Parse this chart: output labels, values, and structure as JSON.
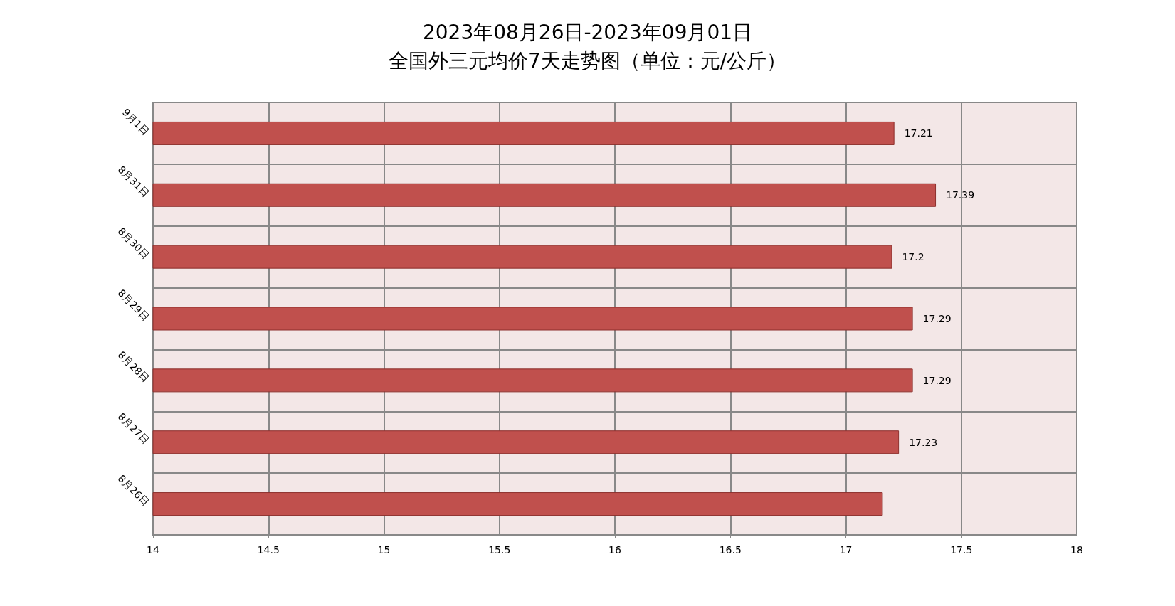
{
  "chart_data": {
    "type": "bar",
    "orientation": "horizontal",
    "title": "2023年08月26日-2023年09月01日",
    "subtitle": "全国外三元均价7天走势图（单位：元/公斤）",
    "categories": [
      "9月1日",
      "8月31日",
      "8月30日",
      "8月29日",
      "8月28日",
      "8月27日",
      "8月26日"
    ],
    "values": [
      17.21,
      17.39,
      17.2,
      17.29,
      17.29,
      17.23,
      17.16
    ],
    "value_labels": [
      "17.21",
      "17.39",
      "17.2",
      "17.29",
      "17.29",
      "17.23",
      null
    ],
    "color": "#c0504d",
    "xlim": [
      14,
      18
    ],
    "xticks": [
      14,
      14.5,
      15,
      15.5,
      16,
      16.5,
      17,
      17.5,
      18
    ],
    "grid": true
  }
}
